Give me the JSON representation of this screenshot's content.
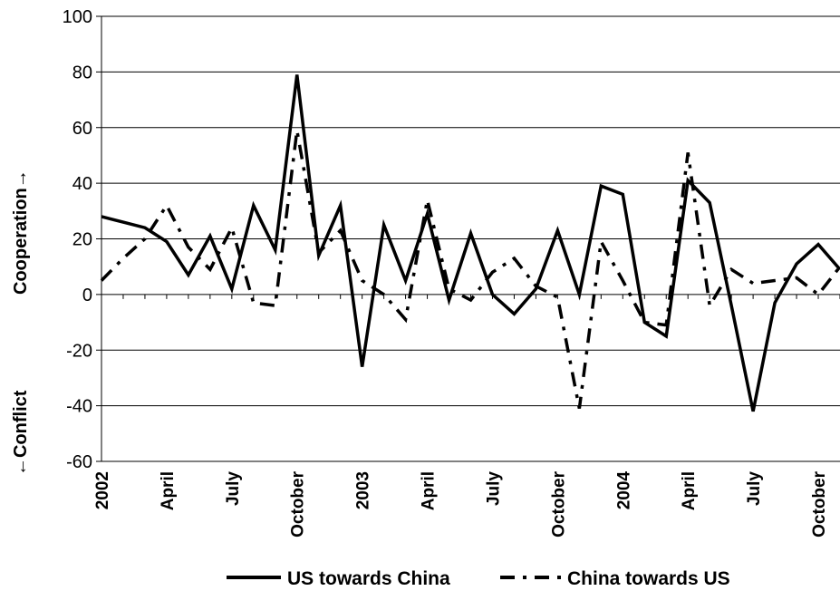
{
  "chart_data": {
    "type": "line",
    "ylabel_top": "Cooperation→",
    "ylabel_bottom": "←Conflict",
    "ylim": [
      -60,
      100
    ],
    "yticks": [
      -60,
      -40,
      -20,
      0,
      20,
      40,
      60,
      80,
      100
    ],
    "grid": true,
    "legend_position": "bottom",
    "x_ticks": [
      {
        "label": "2002",
        "index": 0
      },
      {
        "label": "April",
        "index": 3
      },
      {
        "label": "July",
        "index": 6
      },
      {
        "label": "October",
        "index": 9
      },
      {
        "label": "2003",
        "index": 12
      },
      {
        "label": "April",
        "index": 15
      },
      {
        "label": "July",
        "index": 18
      },
      {
        "label": "October",
        "index": 21
      },
      {
        "label": "2004",
        "index": 24
      },
      {
        "label": "April",
        "index": 27
      },
      {
        "label": "July",
        "index": 30
      },
      {
        "label": "October",
        "index": 33
      }
    ],
    "series": [
      {
        "name": "US towards China",
        "style": "solid",
        "color": "#000000",
        "values": [
          28,
          26,
          24,
          19,
          7,
          21,
          2,
          32,
          16,
          79,
          14,
          32,
          -26,
          25,
          5,
          29,
          -2,
          22,
          0,
          -7,
          2,
          23,
          0,
          39,
          36,
          -10,
          -15,
          41,
          33,
          -4,
          -42,
          -3,
          11,
          18,
          9
        ]
      },
      {
        "name": "China towards US",
        "style": "dash-dot",
        "color": "#000000",
        "values": [
          5,
          13,
          20,
          32,
          17,
          9,
          24,
          -3,
          -4,
          59,
          15,
          23,
          5,
          0,
          -9,
          34,
          2,
          -2,
          8,
          13,
          3,
          -1,
          -41,
          19,
          5,
          -10,
          -11,
          51,
          -4,
          9,
          4,
          5,
          6,
          0,
          10
        ]
      }
    ]
  }
}
